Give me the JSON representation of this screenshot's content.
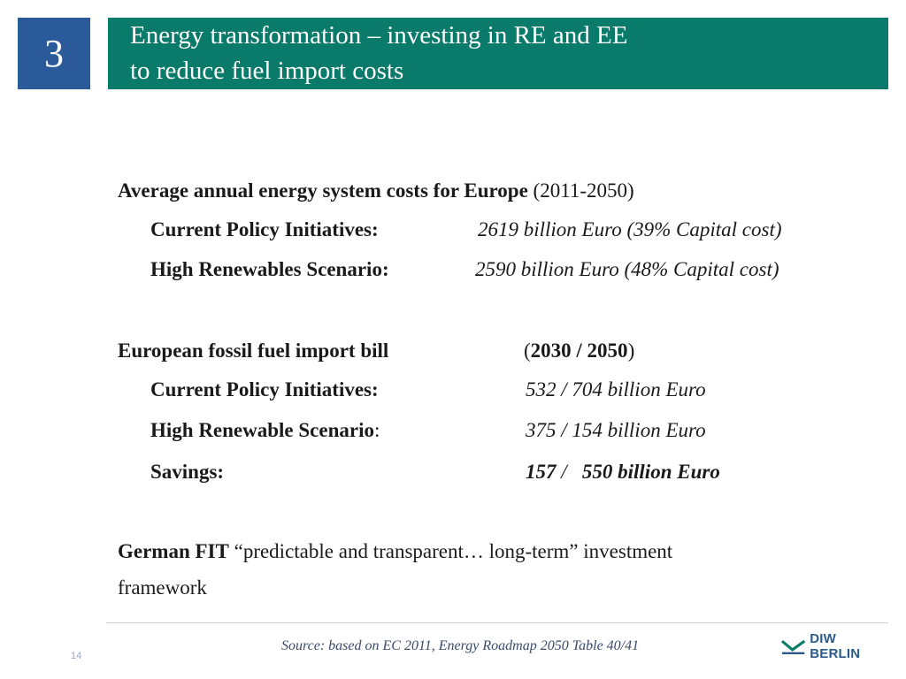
{
  "slide": {
    "section_number": "3",
    "title_line1": "Energy transformation – investing in RE and EE",
    "title_line2": "to reduce fuel import costs",
    "page_number": "14"
  },
  "costs": {
    "heading": "Average annual energy system costs for Europe",
    "period": "(2011-2050)",
    "rows": [
      {
        "label": "Current Policy Initiatives:",
        "value": "2619 billion Euro  (39% Capital cost)"
      },
      {
        "label": "High Renewables Scenario:",
        "value": "2590 billion Euro  (48% Capital cost)"
      }
    ]
  },
  "imports": {
    "heading": "European fossil fuel import bill",
    "period_open": "(",
    "period_years": "2030  / 2050",
    "period_close": ")",
    "rows": [
      {
        "label": "Current Policy Initiatives:",
        "value": "532   /   704   billion Euro"
      },
      {
        "label": "High Renewable Scenario",
        "suffix": ":",
        "value": "375   /   154   billion Euro"
      }
    ],
    "savings": {
      "label": "Savings:",
      "v2030": "157",
      "sep": "/",
      "v2050_unit": "550   billion Euro"
    }
  },
  "fit": {
    "bold": "German FIT",
    "rest": "“predictable and transparent… long-term” investment",
    "line2": "framework"
  },
  "footer": {
    "source": "Source: based on EC 2011, Energy Roadmap 2050  Table 40/41",
    "logo_text": "DIW BERLIN"
  },
  "colors": {
    "number_box": "#2a5a9a",
    "title_bar": "#0a7a6a",
    "logo": "#2a5a8a"
  }
}
